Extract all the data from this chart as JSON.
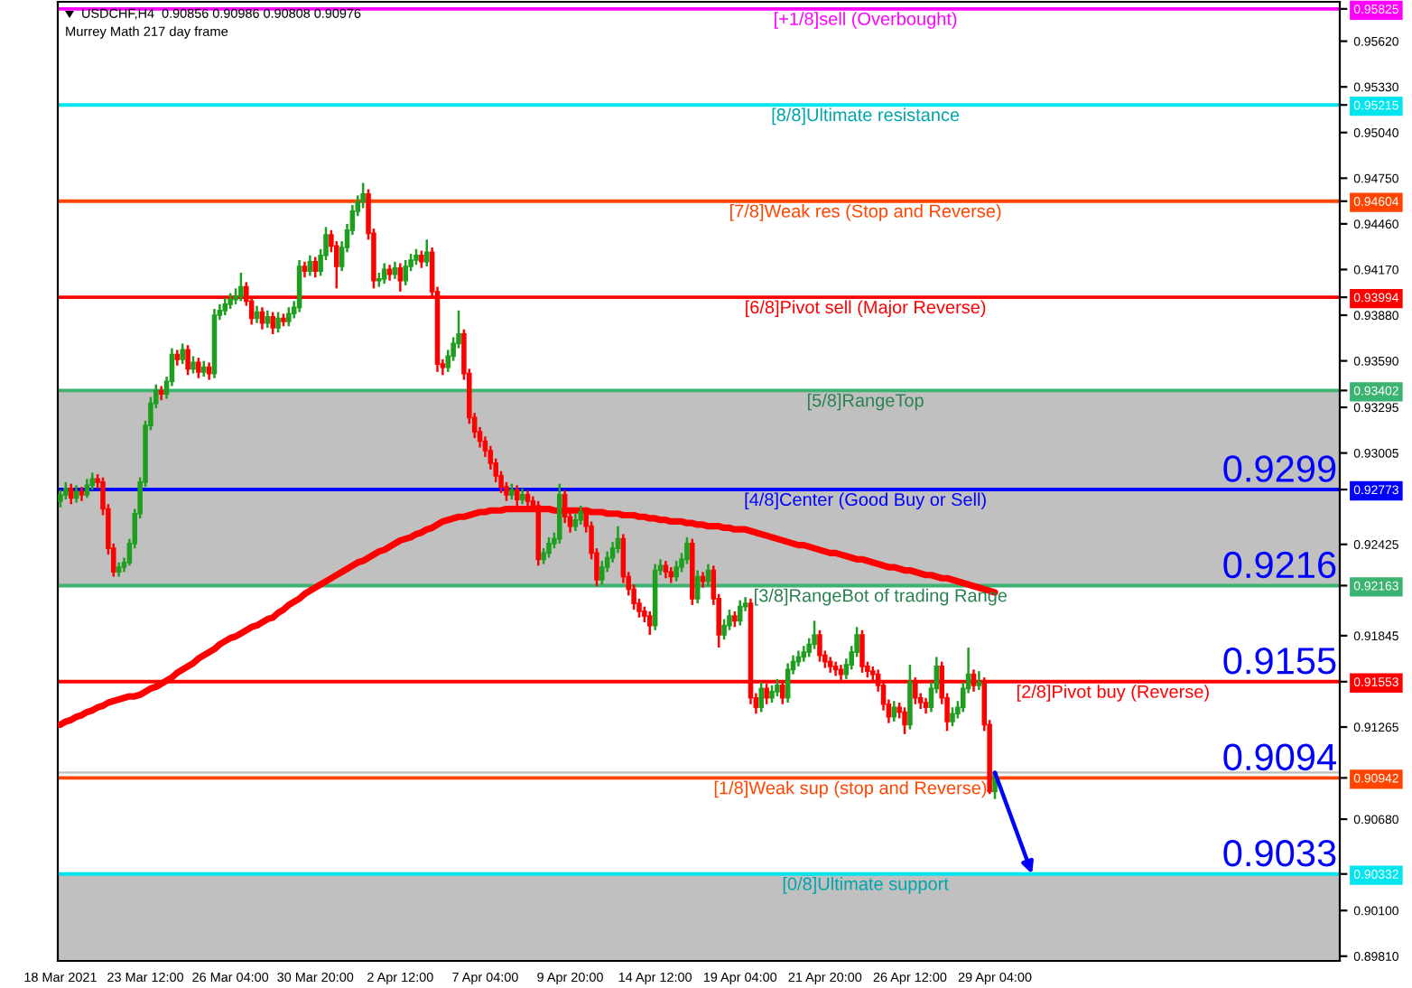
{
  "chart_data": {
    "type": "candlestick",
    "title": "USDCHF,H4  0.90856 0.90986 0.90808 0.90976",
    "subtitle": "Murrey Math 217 day frame",
    "categories": [
      "18 Mar 2021",
      null,
      null,
      null,
      null,
      null,
      null,
      null,
      null,
      null,
      null,
      null,
      null,
      null,
      null,
      null,
      "23 Mar 12:00",
      null,
      null,
      null,
      null,
      null,
      null,
      null,
      null,
      null,
      null,
      null,
      null,
      null,
      null,
      null,
      "26 Mar 04:00",
      null,
      null,
      null,
      null,
      null,
      null,
      null,
      null,
      null,
      null,
      null,
      null,
      null,
      null,
      null,
      "30 Mar 20:00",
      null,
      null,
      null,
      null,
      null,
      null,
      null,
      null,
      null,
      null,
      null,
      null,
      null,
      null,
      null,
      "2 Apr 12:00",
      null,
      null,
      null,
      null,
      null,
      null,
      null,
      null,
      null,
      null,
      null,
      null,
      null,
      null,
      null,
      "7 Apr 04:00",
      null,
      null,
      null,
      null,
      null,
      null,
      null,
      null,
      null,
      null,
      null,
      null,
      null,
      null,
      null,
      "9 Apr 20:00",
      null,
      null,
      null,
      null,
      null,
      null,
      null,
      null,
      null,
      null,
      null,
      null,
      null,
      null,
      null,
      "14 Apr 12:00",
      null,
      null,
      null,
      null,
      null,
      null,
      null,
      null,
      null,
      null,
      null,
      null,
      null,
      null,
      null,
      "19 Apr 04:00",
      null,
      null,
      null,
      null,
      null,
      null,
      null,
      null,
      null,
      null,
      null,
      null,
      null,
      null,
      null,
      "21 Apr 20:00",
      null,
      null,
      null,
      null,
      null,
      null,
      null,
      null,
      null,
      null,
      null,
      null,
      null,
      null,
      null,
      "26 Apr 12:00",
      null,
      null,
      null,
      null,
      null,
      null,
      null,
      null,
      null,
      null,
      null,
      null,
      null,
      null,
      null,
      "29 Apr 04:00"
    ],
    "ohlc": [
      [
        0.927,
        0.9277,
        0.9266,
        0.9274
      ],
      [
        0.9274,
        0.9282,
        0.9271,
        0.9278
      ],
      [
        0.9278,
        0.9281,
        0.9268,
        0.9272
      ],
      [
        0.9272,
        0.928,
        0.9269,
        0.9276
      ],
      [
        0.9276,
        0.9279,
        0.927,
        0.9274
      ],
      [
        0.9274,
        0.9284,
        0.9272,
        0.928
      ],
      [
        0.928,
        0.9288,
        0.9277,
        0.9284
      ],
      [
        0.9284,
        0.9287,
        0.9278,
        0.9282
      ],
      [
        0.9282,
        0.9285,
        0.9261,
        0.9265
      ],
      [
        0.9265,
        0.9268,
        0.9236,
        0.924
      ],
      [
        0.924,
        0.9243,
        0.9222,
        0.9225
      ],
      [
        0.9225,
        0.9231,
        0.9222,
        0.9228
      ],
      [
        0.9228,
        0.9234,
        0.9225,
        0.9231
      ],
      [
        0.9231,
        0.9246,
        0.9229,
        0.9243
      ],
      [
        0.9243,
        0.9265,
        0.924,
        0.9262
      ],
      [
        0.9262,
        0.9285,
        0.9259,
        0.9282
      ],
      [
        0.9282,
        0.9321,
        0.9279,
        0.9318
      ],
      [
        0.9318,
        0.9336,
        0.9315,
        0.9332
      ],
      [
        0.9332,
        0.9344,
        0.9329,
        0.934
      ],
      [
        0.934,
        0.9343,
        0.9334,
        0.9338
      ],
      [
        0.9338,
        0.9349,
        0.9335,
        0.9346
      ],
      [
        0.9346,
        0.9367,
        0.9343,
        0.9363
      ],
      [
        0.9363,
        0.9366,
        0.9356,
        0.936
      ],
      [
        0.936,
        0.937,
        0.9357,
        0.9366
      ],
      [
        0.9366,
        0.9369,
        0.935,
        0.9354
      ],
      [
        0.9354,
        0.9362,
        0.9351,
        0.9358
      ],
      [
        0.9358,
        0.9361,
        0.9348,
        0.9352
      ],
      [
        0.9352,
        0.9359,
        0.9349,
        0.9355
      ],
      [
        0.9355,
        0.9358,
        0.9347,
        0.9351
      ],
      [
        0.9351,
        0.9392,
        0.9348,
        0.9388
      ],
      [
        0.9388,
        0.9395,
        0.9385,
        0.9391
      ],
      [
        0.9391,
        0.9399,
        0.9388,
        0.9395
      ],
      [
        0.9395,
        0.9402,
        0.9392,
        0.9398
      ],
      [
        0.9398,
        0.9405,
        0.9395,
        0.94
      ],
      [
        0.94,
        0.9415,
        0.9397,
        0.9406
      ],
      [
        0.9406,
        0.9409,
        0.9394,
        0.9397
      ],
      [
        0.9397,
        0.94,
        0.9382,
        0.9386
      ],
      [
        0.9386,
        0.9394,
        0.9383,
        0.939
      ],
      [
        0.939,
        0.9393,
        0.9379,
        0.9383
      ],
      [
        0.9383,
        0.9391,
        0.938,
        0.9387
      ],
      [
        0.9387,
        0.939,
        0.9376,
        0.938
      ],
      [
        0.938,
        0.939,
        0.9377,
        0.9386
      ],
      [
        0.9386,
        0.9389,
        0.9381,
        0.9384
      ],
      [
        0.9384,
        0.9393,
        0.9381,
        0.9389
      ],
      [
        0.9389,
        0.9397,
        0.9386,
        0.9393
      ],
      [
        0.9393,
        0.9423,
        0.939,
        0.9419
      ],
      [
        0.9419,
        0.9422,
        0.9412,
        0.9416
      ],
      [
        0.9416,
        0.9426,
        0.9413,
        0.9422
      ],
      [
        0.9422,
        0.9425,
        0.9412,
        0.9416
      ],
      [
        0.9416,
        0.943,
        0.9413,
        0.9426
      ],
      [
        0.9426,
        0.9444,
        0.9423,
        0.9439
      ],
      [
        0.9439,
        0.9442,
        0.9428,
        0.9432
      ],
      [
        0.9432,
        0.9435,
        0.9405,
        0.9419
      ],
      [
        0.9419,
        0.9435,
        0.9416,
        0.9431
      ],
      [
        0.9431,
        0.9446,
        0.9428,
        0.9442
      ],
      [
        0.9442,
        0.9458,
        0.9439,
        0.9454
      ],
      [
        0.9454,
        0.9464,
        0.9451,
        0.946
      ],
      [
        0.946,
        0.9472,
        0.9456,
        0.9465
      ],
      [
        0.9465,
        0.9468,
        0.9436,
        0.944
      ],
      [
        0.944,
        0.9443,
        0.9405,
        0.941
      ],
      [
        0.941,
        0.9415,
        0.9406,
        0.9411
      ],
      [
        0.9411,
        0.9421,
        0.9408,
        0.9417
      ],
      [
        0.9417,
        0.942,
        0.941,
        0.9414
      ],
      [
        0.9414,
        0.9422,
        0.9411,
        0.9418
      ],
      [
        0.9418,
        0.9421,
        0.9403,
        0.941
      ],
      [
        0.941,
        0.9423,
        0.9407,
        0.9419
      ],
      [
        0.9419,
        0.9427,
        0.9416,
        0.9423
      ],
      [
        0.9423,
        0.943,
        0.942,
        0.9426
      ],
      [
        0.9426,
        0.9429,
        0.9418,
        0.9422
      ],
      [
        0.9422,
        0.9436,
        0.9419,
        0.9428
      ],
      [
        0.9428,
        0.9431,
        0.9399,
        0.9403
      ],
      [
        0.9403,
        0.9406,
        0.9352,
        0.9357
      ],
      [
        0.9357,
        0.936,
        0.935,
        0.9355
      ],
      [
        0.9355,
        0.9366,
        0.9352,
        0.9362
      ],
      [
        0.9362,
        0.9374,
        0.9359,
        0.937
      ],
      [
        0.937,
        0.9391,
        0.9367,
        0.9376
      ],
      [
        0.9376,
        0.9379,
        0.9347,
        0.9351
      ],
      [
        0.9351,
        0.9354,
        0.9319,
        0.9323
      ],
      [
        0.9323,
        0.9326,
        0.931,
        0.9314
      ],
      [
        0.9314,
        0.9317,
        0.9304,
        0.9308
      ],
      [
        0.9308,
        0.9311,
        0.9298,
        0.9302
      ],
      [
        0.9302,
        0.9305,
        0.929,
        0.9294
      ],
      [
        0.9294,
        0.9297,
        0.9282,
        0.9286
      ],
      [
        0.9286,
        0.9289,
        0.9275,
        0.9279
      ],
      [
        0.9279,
        0.9282,
        0.927,
        0.9274
      ],
      [
        0.9274,
        0.9281,
        0.9271,
        0.9277
      ],
      [
        0.9277,
        0.928,
        0.9267,
        0.9271
      ],
      [
        0.9271,
        0.9278,
        0.9268,
        0.9274
      ],
      [
        0.9274,
        0.9277,
        0.9266,
        0.927
      ],
      [
        0.927,
        0.9273,
        0.9263,
        0.9267
      ],
      [
        0.9267,
        0.927,
        0.9229,
        0.9233
      ],
      [
        0.9233,
        0.924,
        0.923,
        0.9237
      ],
      [
        0.9237,
        0.9247,
        0.9234,
        0.9243
      ],
      [
        0.9243,
        0.925,
        0.924,
        0.9246
      ],
      [
        0.9246,
        0.9281,
        0.9243,
        0.9274
      ],
      [
        0.9274,
        0.9277,
        0.9256,
        0.926
      ],
      [
        0.926,
        0.9263,
        0.925,
        0.9254
      ],
      [
        0.9254,
        0.9262,
        0.9251,
        0.9258
      ],
      [
        0.9258,
        0.9267,
        0.9255,
        0.9263
      ],
      [
        0.9263,
        0.9266,
        0.925,
        0.9254
      ],
      [
        0.9254,
        0.9257,
        0.9233,
        0.9237
      ],
      [
        0.9237,
        0.924,
        0.9216,
        0.922
      ],
      [
        0.922,
        0.9232,
        0.9217,
        0.9228
      ],
      [
        0.9228,
        0.9238,
        0.9225,
        0.9234
      ],
      [
        0.9234,
        0.9244,
        0.9231,
        0.924
      ],
      [
        0.924,
        0.9254,
        0.9237,
        0.9246
      ],
      [
        0.9246,
        0.9249,
        0.9218,
        0.9222
      ],
      [
        0.9222,
        0.9225,
        0.921,
        0.9214
      ],
      [
        0.9214,
        0.9217,
        0.9201,
        0.9205
      ],
      [
        0.9205,
        0.9208,
        0.9196,
        0.92
      ],
      [
        0.92,
        0.9203,
        0.9193,
        0.9197
      ],
      [
        0.9197,
        0.92,
        0.9185,
        0.9191
      ],
      [
        0.9191,
        0.923,
        0.9188,
        0.9226
      ],
      [
        0.9226,
        0.9233,
        0.9223,
        0.9229
      ],
      [
        0.9229,
        0.9232,
        0.9221,
        0.9225
      ],
      [
        0.9225,
        0.9228,
        0.9218,
        0.9222
      ],
      [
        0.9222,
        0.9232,
        0.9219,
        0.9228
      ],
      [
        0.9228,
        0.9237,
        0.9225,
        0.9233
      ],
      [
        0.9233,
        0.9247,
        0.923,
        0.9243
      ],
      [
        0.9243,
        0.9246,
        0.9204,
        0.9208
      ],
      [
        0.9208,
        0.9226,
        0.9205,
        0.9222
      ],
      [
        0.9222,
        0.9225,
        0.9215,
        0.9219
      ],
      [
        0.9219,
        0.923,
        0.9216,
        0.9226
      ],
      [
        0.9226,
        0.9229,
        0.9204,
        0.9208
      ],
      [
        0.9208,
        0.9211,
        0.9177,
        0.9185
      ],
      [
        0.9185,
        0.9195,
        0.9182,
        0.9191
      ],
      [
        0.9191,
        0.9201,
        0.9188,
        0.9197
      ],
      [
        0.9197,
        0.92,
        0.919,
        0.9194
      ],
      [
        0.9194,
        0.9207,
        0.9191,
        0.9203
      ],
      [
        0.9203,
        0.9209,
        0.92,
        0.9205
      ],
      [
        0.9205,
        0.9208,
        0.9141,
        0.9145
      ],
      [
        0.9145,
        0.9148,
        0.9135,
        0.9139
      ],
      [
        0.9139,
        0.9155,
        0.9136,
        0.9151
      ],
      [
        0.9151,
        0.9154,
        0.9141,
        0.9145
      ],
      [
        0.9145,
        0.9153,
        0.9142,
        0.9149
      ],
      [
        0.9149,
        0.9157,
        0.9146,
        0.9153
      ],
      [
        0.9153,
        0.9156,
        0.9141,
        0.9145
      ],
      [
        0.9145,
        0.9167,
        0.9142,
        0.9163
      ],
      [
        0.9163,
        0.9172,
        0.916,
        0.9168
      ],
      [
        0.9168,
        0.9175,
        0.9165,
        0.9171
      ],
      [
        0.9171,
        0.9178,
        0.9168,
        0.9174
      ],
      [
        0.9174,
        0.9183,
        0.9171,
        0.9179
      ],
      [
        0.9179,
        0.9194,
        0.9176,
        0.9185
      ],
      [
        0.9185,
        0.9188,
        0.9168,
        0.9172
      ],
      [
        0.9172,
        0.9175,
        0.9164,
        0.9168
      ],
      [
        0.9168,
        0.9171,
        0.9161,
        0.9165
      ],
      [
        0.9165,
        0.9168,
        0.9159,
        0.9163
      ],
      [
        0.9163,
        0.9166,
        0.9156,
        0.916
      ],
      [
        0.916,
        0.917,
        0.9157,
        0.9166
      ],
      [
        0.9166,
        0.9178,
        0.9163,
        0.9174
      ],
      [
        0.9174,
        0.919,
        0.9171,
        0.9185
      ],
      [
        0.9185,
        0.9188,
        0.9161,
        0.9165
      ],
      [
        0.9165,
        0.9168,
        0.9158,
        0.9162
      ],
      [
        0.9162,
        0.9165,
        0.9156,
        0.916
      ],
      [
        0.916,
        0.9163,
        0.9149,
        0.9153
      ],
      [
        0.9153,
        0.9156,
        0.9137,
        0.9141
      ],
      [
        0.9141,
        0.9144,
        0.9129,
        0.9133
      ],
      [
        0.9133,
        0.9143,
        0.913,
        0.9139
      ],
      [
        0.9139,
        0.9142,
        0.9132,
        0.9136
      ],
      [
        0.9136,
        0.9139,
        0.9122,
        0.9128
      ],
      [
        0.9128,
        0.9166,
        0.9125,
        0.9155
      ],
      [
        0.9155,
        0.9158,
        0.9141,
        0.9145
      ],
      [
        0.9145,
        0.9148,
        0.9138,
        0.9142
      ],
      [
        0.9142,
        0.9145,
        0.9135,
        0.9139
      ],
      [
        0.9139,
        0.9155,
        0.9136,
        0.9151
      ],
      [
        0.9151,
        0.9171,
        0.9148,
        0.9165
      ],
      [
        0.9165,
        0.9168,
        0.9141,
        0.9145
      ],
      [
        0.9145,
        0.9148,
        0.9124,
        0.913
      ],
      [
        0.913,
        0.9139,
        0.9127,
        0.9135
      ],
      [
        0.9135,
        0.9143,
        0.9132,
        0.9139
      ],
      [
        0.9139,
        0.9155,
        0.9136,
        0.9151
      ],
      [
        0.9151,
        0.9177,
        0.9148,
        0.916
      ],
      [
        0.916,
        0.9163,
        0.9149,
        0.9153
      ],
      [
        0.9153,
        0.9162,
        0.915,
        0.9155
      ],
      [
        0.9155,
        0.9158,
        0.9124,
        0.9128
      ],
      [
        0.9128,
        0.9131,
        0.9084,
        0.90856
      ],
      [
        0.90856,
        0.90986,
        0.90808,
        0.90976
      ]
    ],
    "colors": [
      "#1f9e1f",
      "#1f9e1f",
      "#ff0000",
      "#1f9e1f",
      "#ff0000",
      "#1f9e1f",
      "#1f9e1f",
      "#ff0000",
      "#ff0000",
      "#ff0000",
      "#ff0000",
      "#1f9e1f",
      "#1f9e1f",
      "#1f9e1f",
      "#1f9e1f",
      "#1f9e1f",
      "#1f9e1f",
      "#1f9e1f",
      "#1f9e1f",
      "#ff0000",
      "#1f9e1f",
      "#1f9e1f",
      "#ff0000",
      "#1f9e1f",
      "#ff0000",
      "#1f9e1f",
      "#ff0000",
      "#1f9e1f",
      "#ff0000",
      "#1f9e1f",
      "#1f9e1f",
      "#1f9e1f",
      "#1f9e1f",
      "#1f9e1f",
      "#1f9e1f",
      "#ff0000",
      "#ff0000",
      "#1f9e1f",
      "#ff0000",
      "#1f9e1f",
      "#ff0000",
      "#1f9e1f",
      "#ff0000",
      "#1f9e1f",
      "#1f9e1f",
      "#1f9e1f",
      "#ff0000",
      "#1f9e1f",
      "#ff0000",
      "#1f9e1f",
      "#1f9e1f",
      "#ff0000",
      "#ff0000",
      "#1f9e1f",
      "#1f9e1f",
      "#1f9e1f",
      "#1f9e1f",
      "#1f9e1f",
      "#ff0000",
      "#ff0000",
      "#1f9e1f",
      "#1f9e1f",
      "#ff0000",
      "#1f9e1f",
      "#ff0000",
      "#1f9e1f",
      "#1f9e1f",
      "#1f9e1f",
      "#ff0000",
      "#1f9e1f",
      "#ff0000",
      "#ff0000",
      "#ff0000",
      "#1f9e1f",
      "#1f9e1f",
      "#1f9e1f",
      "#ff0000",
      "#ff0000",
      "#ff0000",
      "#ff0000",
      "#ff0000",
      "#ff0000",
      "#ff0000",
      "#ff0000",
      "#ff0000",
      "#1f9e1f",
      "#ff0000",
      "#1f9e1f",
      "#ff0000",
      "#ff0000",
      "#ff0000",
      "#1f9e1f",
      "#1f9e1f",
      "#1f9e1f",
      "#1f9e1f",
      "#ff0000",
      "#ff0000",
      "#1f9e1f",
      "#1f9e1f",
      "#ff0000",
      "#ff0000",
      "#ff0000",
      "#1f9e1f",
      "#1f9e1f",
      "#1f9e1f",
      "#1f9e1f",
      "#ff0000",
      "#ff0000",
      "#ff0000",
      "#ff0000",
      "#ff0000",
      "#ff0000",
      "#1f9e1f",
      "#1f9e1f",
      "#ff0000",
      "#ff0000",
      "#1f9e1f",
      "#1f9e1f",
      "#1f9e1f",
      "#ff0000",
      "#1f9e1f",
      "#ff0000",
      "#1f9e1f",
      "#ff0000",
      "#ff0000",
      "#1f9e1f",
      "#1f9e1f",
      "#ff0000",
      "#1f9e1f",
      "#1f9e1f",
      "#ff0000",
      "#ff0000",
      "#1f9e1f",
      "#ff0000",
      "#1f9e1f",
      "#1f9e1f",
      "#ff0000",
      "#1f9e1f",
      "#1f9e1f",
      "#1f9e1f",
      "#1f9e1f",
      "#1f9e1f",
      "#1f9e1f",
      "#ff0000",
      "#ff0000",
      "#ff0000",
      "#ff0000",
      "#ff0000",
      "#1f9e1f",
      "#1f9e1f",
      "#1f9e1f",
      "#ff0000",
      "#ff0000",
      "#ff0000",
      "#ff0000",
      "#ff0000",
      "#ff0000",
      "#1f9e1f",
      "#ff0000",
      "#ff0000",
      "#1f9e1f",
      "#ff0000",
      "#ff0000",
      "#ff0000",
      "#1f9e1f",
      "#1f9e1f",
      "#ff0000",
      "#ff0000",
      "#1f9e1f",
      "#1f9e1f",
      "#1f9e1f",
      "#1f9e1f",
      "#ff0000",
      "#1f9e1f",
      "#ff0000",
      "#ff0000",
      "#1f9e1f"
    ],
    "series": [
      {
        "type": "line",
        "color": "#ff0000",
        "values": [
          0.9128,
          0.913,
          0.9131,
          0.9133,
          0.9134,
          0.9136,
          0.9137,
          0.9139,
          0.914,
          0.9142,
          0.9143,
          0.9144,
          0.9145,
          0.9146,
          0.9146,
          0.9147,
          0.9149,
          0.9151,
          0.9152,
          0.9154,
          0.9156,
          0.9158,
          0.9161,
          0.9163,
          0.9165,
          0.9167,
          0.917,
          0.9172,
          0.9174,
          0.9176,
          0.9179,
          0.9181,
          0.9183,
          0.9184,
          0.9186,
          0.9188,
          0.919,
          0.9191,
          0.9193,
          0.9195,
          0.9196,
          0.9199,
          0.9201,
          0.9204,
          0.9206,
          0.9208,
          0.9211,
          0.9213,
          0.9215,
          0.9217,
          0.9219,
          0.9221,
          0.9223,
          0.9225,
          0.9227,
          0.9229,
          0.9231,
          0.9232,
          0.9234,
          0.9236,
          0.9238,
          0.9239,
          0.9241,
          0.9243,
          0.9245,
          0.9246,
          0.9247,
          0.9249,
          0.925,
          0.9252,
          0.9253,
          0.9255,
          0.9257,
          0.9258,
          0.9259,
          0.926,
          0.926,
          0.9261,
          0.9262,
          0.9263,
          0.9263,
          0.9264,
          0.9264,
          0.9264,
          0.9265,
          0.9265,
          0.9265,
          0.9265,
          0.9265,
          0.9265,
          0.9265,
          0.9265,
          0.9265,
          0.9264,
          0.9264,
          0.9264,
          0.9264,
          0.9264,
          0.9264,
          0.9264,
          0.9263,
          0.9263,
          0.9263,
          0.9262,
          0.9262,
          0.9262,
          0.9261,
          0.9261,
          0.9261,
          0.926,
          0.926,
          0.9259,
          0.9259,
          0.9258,
          0.9258,
          0.9257,
          0.9257,
          0.9257,
          0.9256,
          0.9256,
          0.9255,
          0.9255,
          0.9254,
          0.9254,
          0.9254,
          0.9253,
          0.9253,
          0.9252,
          0.9252,
          0.9252,
          0.9251,
          0.925,
          0.9249,
          0.9248,
          0.9247,
          0.9246,
          0.9245,
          0.9244,
          0.9243,
          0.9242,
          0.9242,
          0.9241,
          0.924,
          0.9239,
          0.9238,
          0.9237,
          0.9237,
          0.9236,
          0.9235,
          0.9234,
          0.9233,
          0.9233,
          0.9232,
          0.9231,
          0.923,
          0.9229,
          0.9228,
          0.9228,
          0.9227,
          0.9226,
          0.9226,
          0.9225,
          0.9224,
          0.9223,
          0.9223,
          0.9222,
          0.9221,
          0.9221,
          0.922,
          0.9219,
          0.9218,
          0.9217,
          0.9216,
          0.9215,
          0.9214,
          0.9213,
          0.9212
        ]
      }
    ],
    "ylim": [
      0.8978,
      0.9587
    ],
    "yticks": [
      0.95825,
      {
        "value": 0.9562,
        "label": "0.95620"
      },
      {
        "value": 0.9533,
        "label": "0.95330"
      },
      0.95215,
      {
        "value": 0.9504,
        "label": "0.95040"
      },
      {
        "value": 0.9475,
        "label": "0.94750"
      },
      0.94604,
      {
        "value": 0.9446,
        "label": "0.94460"
      },
      {
        "value": 0.9417,
        "label": "0.94170"
      },
      0.93994,
      {
        "value": 0.9388,
        "label": "0.93880"
      },
      {
        "value": 0.9359,
        "label": "0.93590"
      },
      0.93402,
      0.93295,
      0.93005,
      0.92773,
      0.92425,
      0.92163,
      0.91845,
      0.91553,
      0.91265,
      0.90942,
      {
        "value": 0.9068,
        "label": "0.90680"
      },
      0.90332,
      {
        "value": 0.901,
        "label": "0.90100"
      },
      {
        "value": 0.8981,
        "label": "0.89810"
      }
    ],
    "ref_lines": [
      {
        "axis": "y",
        "value": 0.95825,
        "label": "[+1/8]sell (Overbought)",
        "color": "#ff00ff"
      },
      {
        "axis": "y",
        "value": 0.95215,
        "label": "[8/8]Ultimate resistance",
        "color": "#00e5ee"
      },
      {
        "axis": "y",
        "value": 0.94604,
        "label": "[7/8]Weak res (Stop and Reverse)",
        "color": "#ff4500"
      },
      {
        "axis": "y",
        "value": 0.93994,
        "label": "[6/8]Pivot sell (Major Reverse)",
        "color": "#ff0000"
      },
      {
        "axis": "y",
        "value": 0.93402,
        "label": "[5/8]RangeTop",
        "color": "#3cb371"
      },
      {
        "axis": "y",
        "value": 0.92773,
        "label": "[4/8]Center (Good Buy or Sell)",
        "color": "#0000ff"
      },
      {
        "axis": "y",
        "value": 0.92163,
        "label": "[3/8]RangeBot of trading Range",
        "color": "#3cb371"
      },
      {
        "axis": "y",
        "value": 0.91553,
        "label": "[2/8]Pivot buy (Reverse)",
        "color": "#ff0000"
      },
      {
        "axis": "y",
        "value": 0.90942,
        "label": "[1/8]Weak sup (stop and Reverse)",
        "color": "#ff4500"
      },
      {
        "axis": "y",
        "value": 0.90332,
        "label": "[0/8]Ultimate support",
        "color": "#00e5ee"
      },
      {
        "axis": "y",
        "value": 0.90976,
        "color": "#c0c0c0"
      }
    ],
    "bands": [
      {
        "axis": "y",
        "from": 0.92163,
        "to": 0.93402,
        "color": "#c0c0c0"
      },
      {
        "axis": "y",
        "from": 0.8978,
        "to": 0.90332,
        "color": "#c0c0c0"
      }
    ],
    "annotations": [
      {
        "text": "0.9299",
        "y": 0.92773
      },
      {
        "text": "0.9216",
        "y": 0.92163
      },
      {
        "text": "0.9155",
        "y": 0.91553
      },
      {
        "text": "0.9094",
        "y": 0.90942
      },
      {
        "text": "0.9033",
        "y": 0.90332
      }
    ]
  }
}
